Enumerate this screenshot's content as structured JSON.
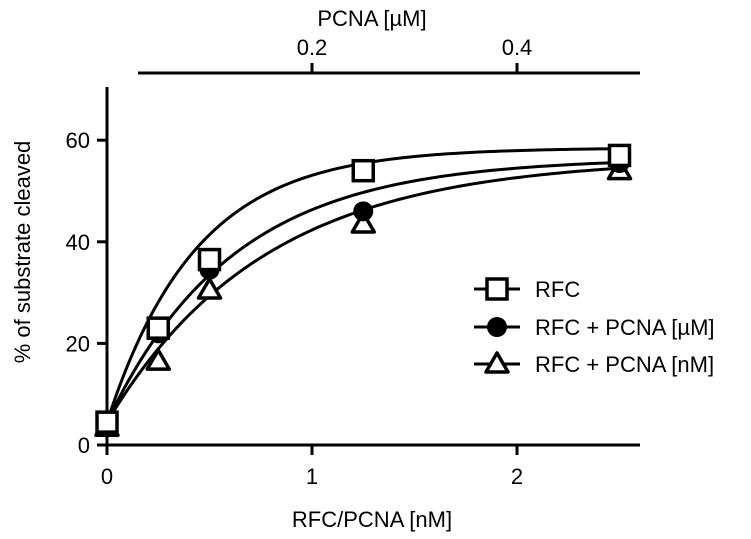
{
  "chart_data": {
    "type": "scatter",
    "xlabel": "RFC/PCNA [nM]",
    "x2label": "PCNA [µM]",
    "ylabel": "% of substrate cleaved",
    "xlim": [
      0,
      2.6
    ],
    "ylim": [
      0,
      70
    ],
    "xticks": [
      0,
      1,
      2
    ],
    "x2lim": [
      0,
      0.52
    ],
    "x2ticks": [
      0.2,
      0.4
    ],
    "yticks": [
      0,
      20,
      40,
      60
    ],
    "grid": false,
    "legend_position": "right",
    "series": [
      {
        "name": "RFC",
        "marker": "open-square",
        "x": [
          0,
          0.25,
          0.5,
          1.25,
          2.5
        ],
        "y": [
          4.5,
          23,
          36.5,
          54,
          57
        ],
        "fit": {
          "ymax": 58.5,
          "k": 2.3,
          "y0": 4.5
        }
      },
      {
        "name": "RFC + PCNA [µM]",
        "marker": "filled-circle",
        "x": [
          0,
          0.25,
          0.5,
          1.25,
          2.5
        ],
        "y": [
          4.5,
          22,
          34.5,
          46,
          55.5
        ],
        "fit": {
          "ymax": 56.5,
          "k": 1.63,
          "y0": 4.5
        }
      },
      {
        "name": "RFC + PCNA [nM]",
        "marker": "open-triangle",
        "x": [
          0,
          0.25,
          0.5,
          1.25,
          2.5
        ],
        "y": [
          3.5,
          16.5,
          30.5,
          43.5,
          54
        ],
        "fit": {
          "ymax": 56.5,
          "k": 1.3,
          "y0": 4.5
        }
      }
    ]
  }
}
